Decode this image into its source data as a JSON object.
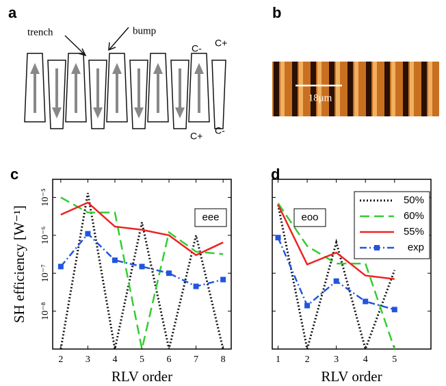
{
  "panels": {
    "a": {
      "label": "a",
      "trench": "trench",
      "bump": "bump",
      "c_minus_top": "C-",
      "c_plus_top": "C+",
      "c_plus_bottom": "C+",
      "c_minus_bottom": "C-"
    },
    "b": {
      "label": "b",
      "scale_bar": "18μm"
    }
  },
  "chart_data": [
    {
      "type": "line",
      "panel_label": "c",
      "annotation": "eee",
      "x_label": "RLV order",
      "y_label": "SH efficiency [W⁻¹]",
      "log_y": true,
      "xlim": [
        1.7,
        8.3
      ],
      "ylim": [
        1e-09,
        3e-05
      ],
      "xticks": [
        2,
        3,
        4,
        5,
        6,
        7,
        8
      ],
      "yticks": [
        {
          "value": 1e-05,
          "label": "10⁻⁵"
        },
        {
          "value": 1e-06,
          "label": "10⁻⁶"
        },
        {
          "value": 1e-07,
          "label": "10⁻⁷"
        },
        {
          "value": 1e-08,
          "label": "10⁻⁸"
        }
      ],
      "legend": false,
      "x": [
        2,
        3,
        4,
        5,
        6,
        7,
        8
      ],
      "series": [
        {
          "color": "#111111",
          "style": "dotted",
          "values": [
            1e-09,
            1.3e-05,
            1e-09,
            2.2e-06,
            1e-09,
            1e-06,
            1e-09
          ]
        },
        {
          "color": "#33cc33",
          "style": "dashed",
          "values": [
            1e-05,
            4e-06,
            4e-06,
            1e-09,
            1.2e-06,
            3.7e-07,
            3.2e-07
          ]
        },
        {
          "color": "#ee2222",
          "style": "solid",
          "values": [
            3.5e-06,
            7.3e-06,
            1.7e-06,
            1.4e-06,
            1e-06,
            3e-07,
            6.5e-07
          ]
        },
        {
          "color": "#2255dd",
          "style": "dashdot",
          "marker": "square",
          "values": [
            1.5e-07,
            1.1e-06,
            2.2e-07,
            1.5e-07,
            1e-07,
            4.5e-08,
            6.8e-08
          ]
        }
      ]
    },
    {
      "type": "line",
      "panel_label": "d",
      "annotation": "eoo",
      "x_label": "RLV order",
      "log_y": true,
      "xlim": [
        0.8,
        6.25
      ],
      "ylim": [
        1e-09,
        3e-05
      ],
      "xticks": [
        1,
        2,
        3,
        4,
        5
      ],
      "yticks": [
        1e-05,
        1e-06,
        1e-07,
        1e-08
      ],
      "ytick_labels": false,
      "legend": "upper right",
      "x": [
        1,
        2,
        3,
        4,
        5
      ],
      "series": [
        {
          "name": "50%",
          "color": "#111111",
          "style": "dotted",
          "values": [
            6.4e-06,
            1e-09,
            6.5e-07,
            1e-09,
            1.2e-07
          ]
        },
        {
          "name": "60%",
          "color": "#33cc33",
          "style": "dashed",
          "values": [
            7e-06,
            5.2e-07,
            1.8e-07,
            1.8e-07,
            1e-09
          ]
        },
        {
          "name": "55%",
          "color": "#ee2222",
          "style": "solid",
          "values": [
            6.4e-06,
            1.7e-07,
            3.5e-07,
            8.7e-08,
            7e-08
          ]
        },
        {
          "name": "exp",
          "color": "#2255dd",
          "style": "dashdot",
          "marker": "square",
          "values": [
            8.7e-07,
            1.4e-08,
            6.2e-08,
            1.8e-08,
            1.1e-08
          ]
        }
      ]
    }
  ]
}
